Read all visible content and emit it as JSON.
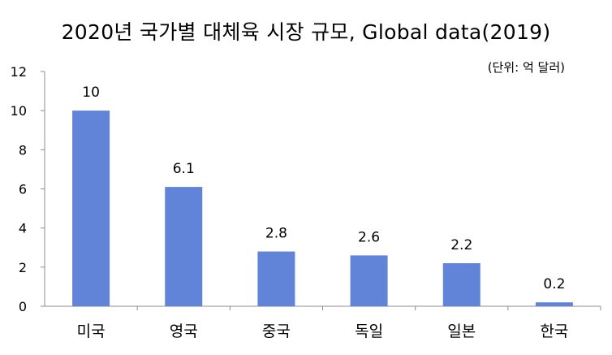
{
  "chart_data": {
    "type": "bar",
    "title": "2020년 국가별 대체육 시장 규모, Global data(2019)",
    "unit_note": "(단위: 억 달러)",
    "categories": [
      "미국",
      "영국",
      "중국",
      "독일",
      "일본",
      "한국"
    ],
    "values": [
      10,
      6.1,
      2.8,
      2.6,
      2.2,
      0.2
    ],
    "data_labels": [
      "10",
      "6.1",
      "2.8",
      "2.6",
      "2.2",
      "0.2"
    ],
    "yticks": [
      "0",
      "2",
      "4",
      "6",
      "8",
      "10",
      "12"
    ],
    "ylim": [
      0,
      12
    ],
    "bar_color": "#6284d8",
    "grid": false,
    "legend": "none"
  }
}
